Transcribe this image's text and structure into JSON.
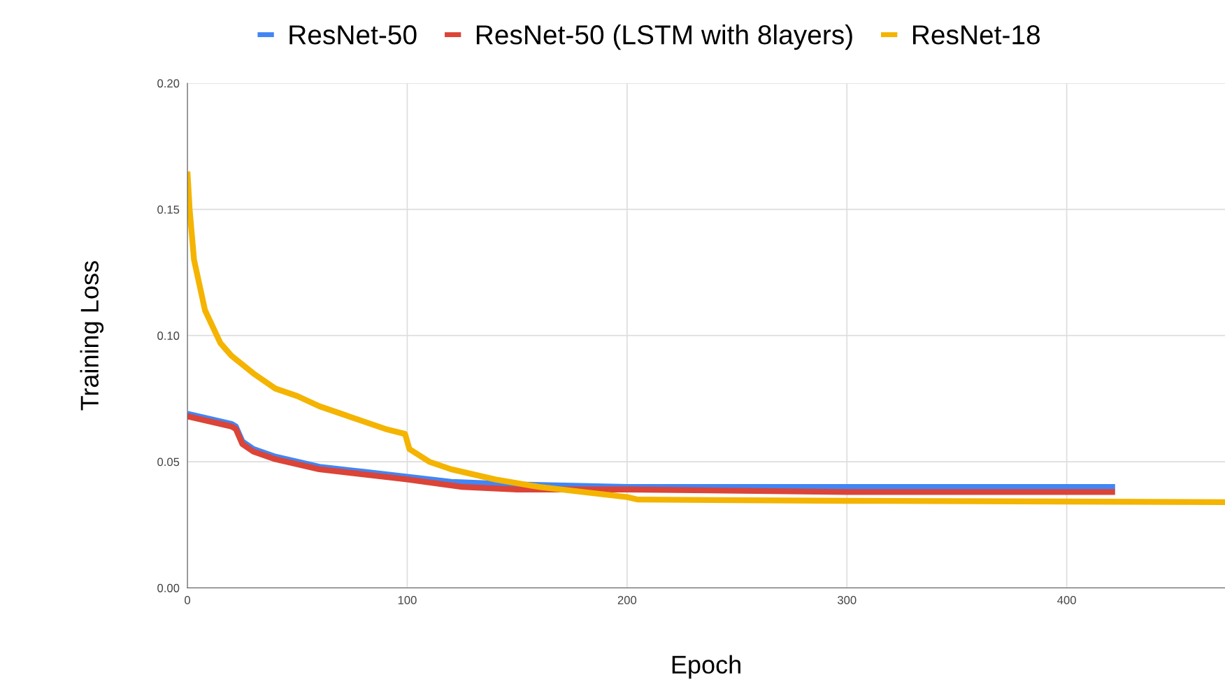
{
  "chart_data": {
    "type": "line",
    "xlabel": "Epoch",
    "ylabel": "Training Loss",
    "xlim": [
      0,
      472
    ],
    "ylim": [
      0,
      0.2
    ],
    "xticks": [
      0,
      100,
      200,
      300,
      400
    ],
    "yticks": [
      {
        "value": 0,
        "label": "0.00"
      },
      {
        "value": 0.05,
        "label": "0.05"
      },
      {
        "value": 0.1,
        "label": "0.10"
      },
      {
        "value": 0.15,
        "label": "0.15"
      },
      {
        "value": 0.2,
        "label": "0.20"
      }
    ],
    "grid": true,
    "legend": "top",
    "marker": "none",
    "line_style": "solid",
    "series": [
      {
        "name": "ResNet-50",
        "color": "#4285f4",
        "x": [
          0,
          10,
          20,
          22,
          25,
          30,
          40,
          60,
          80,
          100,
          120,
          150,
          200,
          300,
          422
        ],
        "values": [
          0.069,
          0.067,
          0.065,
          0.064,
          0.058,
          0.055,
          0.052,
          0.048,
          0.046,
          0.044,
          0.042,
          0.041,
          0.04,
          0.04,
          0.04
        ]
      },
      {
        "name": "ResNet-50 (LSTM with 8layers)",
        "color": "#db4437",
        "x": [
          0,
          10,
          20,
          22,
          25,
          30,
          40,
          60,
          80,
          100,
          125,
          150,
          200,
          300,
          422
        ],
        "values": [
          0.068,
          0.066,
          0.064,
          0.063,
          0.057,
          0.054,
          0.051,
          0.047,
          0.045,
          0.043,
          0.04,
          0.039,
          0.039,
          0.038,
          0.038
        ]
      },
      {
        "name": "ResNet-18",
        "color": "#f4b400",
        "x": [
          0,
          1,
          3,
          8,
          15,
          20,
          30,
          40,
          50,
          60,
          70,
          80,
          90,
          99,
          101,
          110,
          120,
          140,
          160,
          180,
          200,
          205,
          300,
          472
        ],
        "values": [
          0.165,
          0.15,
          0.13,
          0.11,
          0.097,
          0.092,
          0.085,
          0.079,
          0.076,
          0.072,
          0.069,
          0.066,
          0.063,
          0.061,
          0.055,
          0.05,
          0.047,
          0.043,
          0.04,
          0.038,
          0.036,
          0.035,
          0.0345,
          0.034
        ]
      }
    ]
  }
}
